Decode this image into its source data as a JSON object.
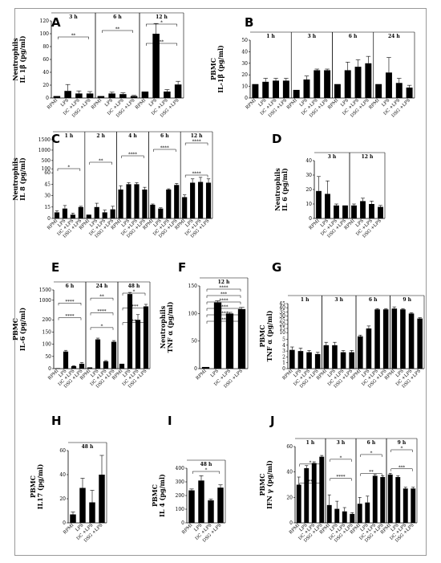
{
  "chart_data": [
    {
      "id": "A",
      "type": "bar",
      "ylabel": [
        "Neutrophils",
        "IL 1β (pg/ml)"
      ],
      "yticks": [
        "0",
        "20",
        "40",
        "60",
        "80",
        "100",
        "120"
      ],
      "ylim": [
        0,
        120
      ],
      "groups": [
        {
          "label": "3 h",
          "categories": [
            "RPMI",
            "LPS",
            "DC +LPS",
            "DSG +LPS"
          ],
          "values": [
            3,
            11,
            7,
            7
          ],
          "errors": [
            0,
            10,
            4,
            3
          ]
        },
        {
          "label": "6 h",
          "categories": [
            "RPMI",
            "LPS",
            "DC +LPS",
            "DSG +LPS"
          ],
          "values": [
            3,
            7,
            6,
            3
          ],
          "errors": [
            0,
            2,
            2,
            1
          ]
        },
        {
          "label": "12 h",
          "categories": [
            "RPMI",
            "LPS",
            "DC +LPS",
            "DSG +LPS"
          ],
          "values": [
            10,
            100,
            10,
            21
          ],
          "errors": [
            0,
            16,
            3,
            5
          ]
        }
      ],
      "annotations": [
        "*",
        "**",
        "**",
        "**"
      ]
    },
    {
      "id": "B",
      "type": "bar",
      "ylabel": [
        "PBMC",
        "IL-1β (pg/ml)"
      ],
      "yticks": [
        "0",
        "10",
        "20",
        "30",
        "40",
        "50"
      ],
      "ylim": [
        0,
        50
      ],
      "groups": [
        {
          "label": "1 h",
          "categories": [
            "RPMI",
            "LPS",
            "DC +LPS",
            "DSG +LPS"
          ],
          "values": [
            12,
            14,
            15,
            15
          ],
          "errors": [
            0,
            3,
            2,
            2
          ]
        },
        {
          "label": "3 h",
          "categories": [
            "RPMI",
            "LPS",
            "DC +LPS",
            "DSG +LPS"
          ],
          "values": [
            7,
            16,
            24,
            24
          ],
          "errors": [
            0,
            3,
            1,
            1
          ]
        },
        {
          "label": "6 h",
          "categories": [
            "RPMI",
            "LPS",
            "DC +LPS",
            "DSG +LPS"
          ],
          "values": [
            12,
            24,
            27,
            30
          ],
          "errors": [
            0,
            7,
            6,
            6
          ]
        },
        {
          "label": "24 h",
          "categories": [
            "RPMI",
            "LPS",
            "DC +LPS",
            "DSG +LPS"
          ],
          "values": [
            12,
            22,
            13,
            9
          ],
          "errors": [
            0,
            13,
            4,
            2
          ]
        }
      ]
    },
    {
      "id": "C",
      "type": "bar",
      "ylabel": [
        "Neutrophils",
        "IL 8 (pg/ml)"
      ],
      "yticks": [
        "0",
        "15",
        "30",
        "45",
        "60",
        "100",
        "500",
        "1000",
        "1500"
      ],
      "ylim": [
        0,
        1500
      ],
      "groups": [
        {
          "label": "1 h",
          "categories": [
            "RPMI",
            "LPS",
            "DC +LPS",
            "DSG +LPS"
          ],
          "values": [
            8,
            13,
            5,
            15
          ],
          "errors": [
            2,
            4,
            2,
            1
          ]
        },
        {
          "label": "2 h",
          "categories": [
            "RPMI",
            "LPS",
            "DC +LPS",
            "DSG +LPS"
          ],
          "values": [
            5,
            15,
            8,
            12
          ],
          "errors": [
            0,
            5,
            3,
            4
          ]
        },
        {
          "label": "4 h",
          "categories": [
            "RPMI",
            "LPS",
            "DC +LPS",
            "DSG +LPS"
          ],
          "values": [
            38,
            45,
            45,
            38
          ],
          "errors": [
            5,
            2,
            2,
            3
          ]
        },
        {
          "label": "6 h",
          "categories": [
            "RPMI",
            "LPS",
            "DC +LPS",
            "DSG +LPS"
          ],
          "values": [
            18,
            13,
            38,
            44
          ],
          "errors": [
            1,
            1,
            1,
            2
          ]
        },
        {
          "label": "12 h",
          "categories": [
            "RPMI",
            "LPS",
            "DC +LPS",
            "DSG +LPS"
          ],
          "values": [
            28,
            47,
            48,
            47
          ],
          "errors": [
            3,
            5,
            6,
            5
          ]
        }
      ],
      "annotations": [
        "****",
        "****",
        "****",
        "**",
        "*",
        "****"
      ]
    },
    {
      "id": "D",
      "type": "bar",
      "ylabel": [
        "Neutrophils",
        "IL 6 (pg/ml)"
      ],
      "yticks": [
        "0",
        "10",
        "20",
        "30",
        "40"
      ],
      "ylim": [
        0,
        40
      ],
      "groups": [
        {
          "label": "3 h",
          "categories": [
            "RPMI",
            "LPS",
            "DC +LPS",
            "DSG +LPS"
          ],
          "values": [
            19,
            17,
            9,
            9
          ],
          "errors": [
            10,
            9,
            1,
            0
          ]
        },
        {
          "label": "12 h",
          "categories": [
            "RPMI",
            "LPS",
            "DC +LPS",
            "DSG +LPS"
          ],
          "values": [
            9,
            12,
            10,
            8
          ],
          "errors": [
            1,
            2,
            2,
            1
          ]
        }
      ]
    },
    {
      "id": "E",
      "type": "bar",
      "ylabel": [
        "PBMC",
        "IL-6 (pg/ml)"
      ],
      "yticks": [
        "0",
        "50",
        "100",
        "150",
        "200",
        "1000",
        "1500"
      ],
      "ylim": [
        0,
        1500
      ],
      "groups": [
        {
          "label": "6 h",
          "categories": [
            "RPMI",
            "LPS",
            "DC +LPS",
            "DSG +LPS"
          ],
          "values": [
            2,
            70,
            10,
            20
          ],
          "errors": [
            0,
            5,
            2,
            5
          ]
        },
        {
          "label": "24 h",
          "categories": [
            "RPMI",
            "LPS",
            "DC +LPS",
            "DSG +LPS"
          ],
          "values": [
            5,
            120,
            30,
            110
          ],
          "errors": [
            0,
            5,
            3,
            5
          ]
        },
        {
          "label": "48 h",
          "categories": [
            "RPMI",
            "LPS",
            "DC +LPS",
            "DSG +LPS"
          ],
          "values": [
            20,
            1300,
            200,
            700
          ],
          "errors": [
            0,
            80,
            100,
            100
          ]
        }
      ],
      "annotations": [
        "*",
        "**",
        "****",
        "****",
        "****",
        "****",
        "**",
        "*"
      ]
    },
    {
      "id": "F",
      "type": "bar",
      "ylabel": [
        "Neutrophils",
        "TNF α (pg/ml)"
      ],
      "yticks": [
        "0",
        "50",
        "100",
        "150"
      ],
      "ylim": [
        0,
        150
      ],
      "groups": [
        {
          "label": "12 h",
          "categories": [
            "RPMI",
            "LPS",
            "DC +LPS",
            "DSG +LPS"
          ],
          "values": [
            3,
            120,
            100,
            108
          ],
          "errors": [
            0,
            3,
            2,
            3
          ]
        }
      ],
      "annotations": [
        "****",
        "***",
        "****",
        "****",
        "****",
        "**"
      ]
    },
    {
      "id": "G",
      "type": "bar",
      "ylabel": [
        "PBMC",
        "TNF α (pg/ml)"
      ],
      "yticks": [
        "0",
        "1",
        "2",
        "3",
        "4",
        "5",
        "10",
        "15",
        "20",
        "25",
        "30",
        "35",
        "40",
        "45"
      ],
      "ylim": [
        0,
        45
      ],
      "groups": [
        {
          "label": "1 h",
          "categories": [
            "RPMI",
            "LPS",
            "DC +LPS",
            "DSG +LPS"
          ],
          "values": [
            3.2,
            3.0,
            2.8,
            2.5
          ],
          "errors": [
            0.5,
            0.5,
            0.3,
            0.3
          ]
        },
        {
          "label": "3 h",
          "categories": [
            "RPMI",
            "LPS",
            "DC +LPS",
            "DSG +LPS"
          ],
          "values": [
            4.0,
            4.0,
            2.8,
            2.8
          ],
          "errors": [
            0.5,
            0.5,
            0.3,
            0.3
          ]
        },
        {
          "label": "6 h",
          "categories": [
            "RPMI",
            "LPS",
            "DC +LPS",
            "DSG +LPS"
          ],
          "values": [
            5.5,
            15,
            38,
            38
          ],
          "errors": [
            1.5,
            3,
            1,
            1
          ]
        },
        {
          "label": "9 h",
          "categories": [
            "RPMI",
            "LPS",
            "DC +LPS",
            "DSG +LPS"
          ],
          "values": [
            39,
            38,
            33,
            27
          ],
          "errors": [
            2,
            1,
            1,
            1
          ]
        }
      ]
    },
    {
      "id": "H",
      "type": "bar",
      "ylabel": [
        "PBMC",
        "IL17 (pg/ml)"
      ],
      "yticks": [
        "0",
        "20",
        "40",
        "60"
      ],
      "ylim": [
        0,
        60
      ],
      "groups": [
        {
          "label": "48 h",
          "categories": [
            "RPMI",
            "LPS",
            "DC +LPS",
            "DSG +LPS"
          ],
          "values": [
            7,
            29,
            17,
            40
          ],
          "errors": [
            2,
            8,
            10,
            16
          ]
        }
      ]
    },
    {
      "id": "I",
      "type": "bar",
      "ylabel": [
        "PBMC",
        "IL 4 (pg/ml)"
      ],
      "yticks": [
        "0",
        "100",
        "200",
        "300",
        "400"
      ],
      "ylim": [
        0,
        400
      ],
      "groups": [
        {
          "label": "48 h",
          "categories": [
            "RPMI",
            "LPS",
            "DC +LPS",
            "DSG +LPS"
          ],
          "values": [
            238,
            310,
            165,
            258
          ],
          "errors": [
            10,
            35,
            10,
            20
          ]
        }
      ],
      "annotations": [
        "*"
      ]
    },
    {
      "id": "J",
      "type": "bar",
      "ylabel": [
        "PBMC",
        "IFN γ (pg/ml)"
      ],
      "yticks": [
        "0",
        "20",
        "40",
        "60"
      ],
      "ylim": [
        0,
        60
      ],
      "groups": [
        {
          "label": "1 h",
          "categories": [
            "RPMI",
            "LPS",
            "DC +LPS",
            "DSG +LPS"
          ],
          "values": [
            30,
            43,
            47,
            52
          ],
          "errors": [
            6,
            2,
            1,
            1
          ]
        },
        {
          "label": "3 h",
          "categories": [
            "RPMI",
            "LPS",
            "DC +LPS",
            "DSG +LPS"
          ],
          "values": [
            14,
            11,
            9,
            7
          ],
          "errors": [
            8,
            6,
            3,
            1
          ]
        },
        {
          "label": "6 h",
          "categories": [
            "RPMI",
            "LPS",
            "DC +LPS",
            "DSG +LPS"
          ],
          "values": [
            15,
            16,
            37,
            36
          ],
          "errors": [
            5,
            5,
            1,
            1
          ]
        },
        {
          "label": "9 h",
          "categories": [
            "RPMI",
            "LPS",
            "DC +LPS",
            "DSG +LPS"
          ],
          "values": [
            38,
            36,
            27,
            27
          ],
          "errors": [
            1,
            1,
            1,
            1
          ]
        }
      ],
      "annotations": [
        "*",
        "*",
        "*",
        "*",
        "***",
        "**",
        "****",
        "**"
      ]
    }
  ]
}
